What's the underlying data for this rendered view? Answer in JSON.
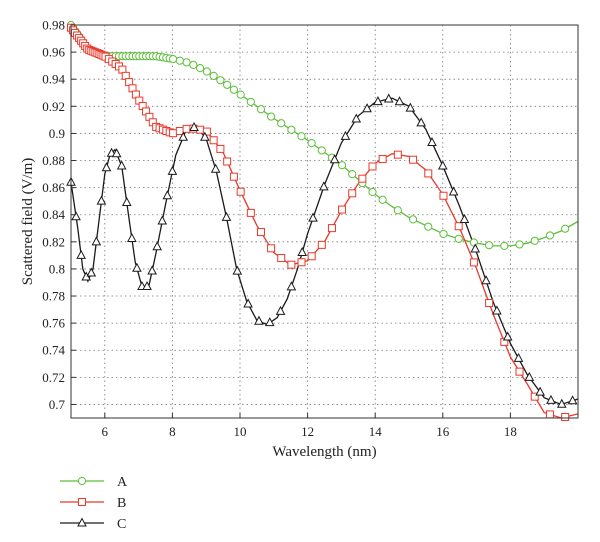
{
  "chart_data": {
    "type": "line",
    "title": "",
    "xlabel": "Wavelength (nm)",
    "ylabel": "Scattered field (V/m)",
    "xlim": [
      5,
      20
    ],
    "ylim": [
      0.69,
      0.98
    ],
    "xticks": [
      6,
      8,
      10,
      12,
      14,
      16,
      18
    ],
    "yticks": [
      0.7,
      0.72,
      0.74,
      0.76,
      0.78,
      0.8,
      0.82,
      0.84,
      0.86,
      0.88,
      0.9,
      0.92,
      0.94,
      0.96,
      0.98
    ],
    "grid": "dotted",
    "legend_position": "bottom-left",
    "series": [
      {
        "name": "A",
        "color": "#5cbf3a",
        "marker": "circle",
        "points": [
          [
            5.0,
            0.98
          ],
          [
            5.5,
            0.962
          ],
          [
            6.0,
            0.957
          ],
          [
            6.5,
            0.957
          ],
          [
            7.0,
            0.957
          ],
          [
            7.5,
            0.957
          ],
          [
            8.0,
            0.955
          ],
          [
            8.5,
            0.952
          ],
          [
            9.0,
            0.946
          ],
          [
            9.5,
            0.938
          ],
          [
            10.0,
            0.929
          ],
          [
            10.5,
            0.92
          ],
          [
            11.0,
            0.911
          ],
          [
            11.5,
            0.903
          ],
          [
            12.0,
            0.895
          ],
          [
            12.5,
            0.886
          ],
          [
            13.0,
            0.877
          ],
          [
            13.5,
            0.866
          ],
          [
            14.0,
            0.855
          ],
          [
            14.5,
            0.846
          ],
          [
            15.0,
            0.838
          ],
          [
            15.5,
            0.832
          ],
          [
            16.0,
            0.826
          ],
          [
            16.5,
            0.822
          ],
          [
            17.0,
            0.819
          ],
          [
            17.5,
            0.817
          ],
          [
            18.0,
            0.817
          ],
          [
            18.5,
            0.819
          ],
          [
            19.0,
            0.823
          ],
          [
            19.5,
            0.828
          ],
          [
            20.0,
            0.835
          ]
        ]
      },
      {
        "name": "B",
        "color": "#e8392b",
        "marker": "square",
        "points": [
          [
            5.0,
            0.978
          ],
          [
            5.5,
            0.962
          ],
          [
            6.0,
            0.957
          ],
          [
            6.5,
            0.948
          ],
          [
            7.0,
            0.925
          ],
          [
            7.5,
            0.905
          ],
          [
            8.0,
            0.9
          ],
          [
            8.5,
            0.904
          ],
          [
            9.0,
            0.902
          ],
          [
            9.5,
            0.886
          ],
          [
            10.0,
            0.858
          ],
          [
            10.5,
            0.832
          ],
          [
            11.0,
            0.812
          ],
          [
            11.5,
            0.803
          ],
          [
            12.0,
            0.806
          ],
          [
            12.5,
            0.82
          ],
          [
            13.0,
            0.843
          ],
          [
            13.5,
            0.863
          ],
          [
            14.0,
            0.878
          ],
          [
            14.5,
            0.885
          ],
          [
            15.0,
            0.883
          ],
          [
            15.5,
            0.873
          ],
          [
            16.0,
            0.855
          ],
          [
            16.5,
            0.83
          ],
          [
            17.0,
            0.8
          ],
          [
            17.5,
            0.766
          ],
          [
            18.0,
            0.735
          ],
          [
            18.5,
            0.715
          ],
          [
            19.0,
            0.694
          ],
          [
            19.5,
            0.69
          ],
          [
            20.0,
            0.693
          ]
        ]
      },
      {
        "name": "C",
        "color": "#1a1a1a",
        "marker": "triangle",
        "points": [
          [
            5.0,
            0.864
          ],
          [
            5.2,
            0.83
          ],
          [
            5.35,
            0.8
          ],
          [
            5.5,
            0.791
          ],
          [
            5.65,
            0.8
          ],
          [
            5.8,
            0.83
          ],
          [
            6.0,
            0.87
          ],
          [
            6.15,
            0.884
          ],
          [
            6.3,
            0.888
          ],
          [
            6.5,
            0.876
          ],
          [
            6.7,
            0.84
          ],
          [
            6.9,
            0.805
          ],
          [
            7.1,
            0.787
          ],
          [
            7.3,
            0.787
          ],
          [
            7.5,
            0.81
          ],
          [
            7.8,
            0.848
          ],
          [
            8.1,
            0.884
          ],
          [
            8.4,
            0.902
          ],
          [
            8.7,
            0.905
          ],
          [
            9.0,
            0.896
          ],
          [
            9.3,
            0.872
          ],
          [
            9.6,
            0.838
          ],
          [
            9.9,
            0.8
          ],
          [
            10.2,
            0.776
          ],
          [
            10.5,
            0.762
          ],
          [
            10.8,
            0.759
          ],
          [
            11.1,
            0.764
          ],
          [
            11.4,
            0.778
          ],
          [
            11.7,
            0.8
          ],
          [
            12.0,
            0.826
          ],
          [
            12.5,
            0.862
          ],
          [
            13.0,
            0.893
          ],
          [
            13.5,
            0.913
          ],
          [
            14.0,
            0.923
          ],
          [
            14.5,
            0.926
          ],
          [
            15.0,
            0.92
          ],
          [
            15.5,
            0.903
          ],
          [
            16.0,
            0.876
          ],
          [
            16.5,
            0.846
          ],
          [
            17.0,
            0.812
          ],
          [
            17.5,
            0.775
          ],
          [
            18.0,
            0.745
          ],
          [
            18.5,
            0.722
          ],
          [
            19.0,
            0.705
          ],
          [
            19.5,
            0.7
          ],
          [
            20.0,
            0.704
          ]
        ]
      }
    ]
  }
}
